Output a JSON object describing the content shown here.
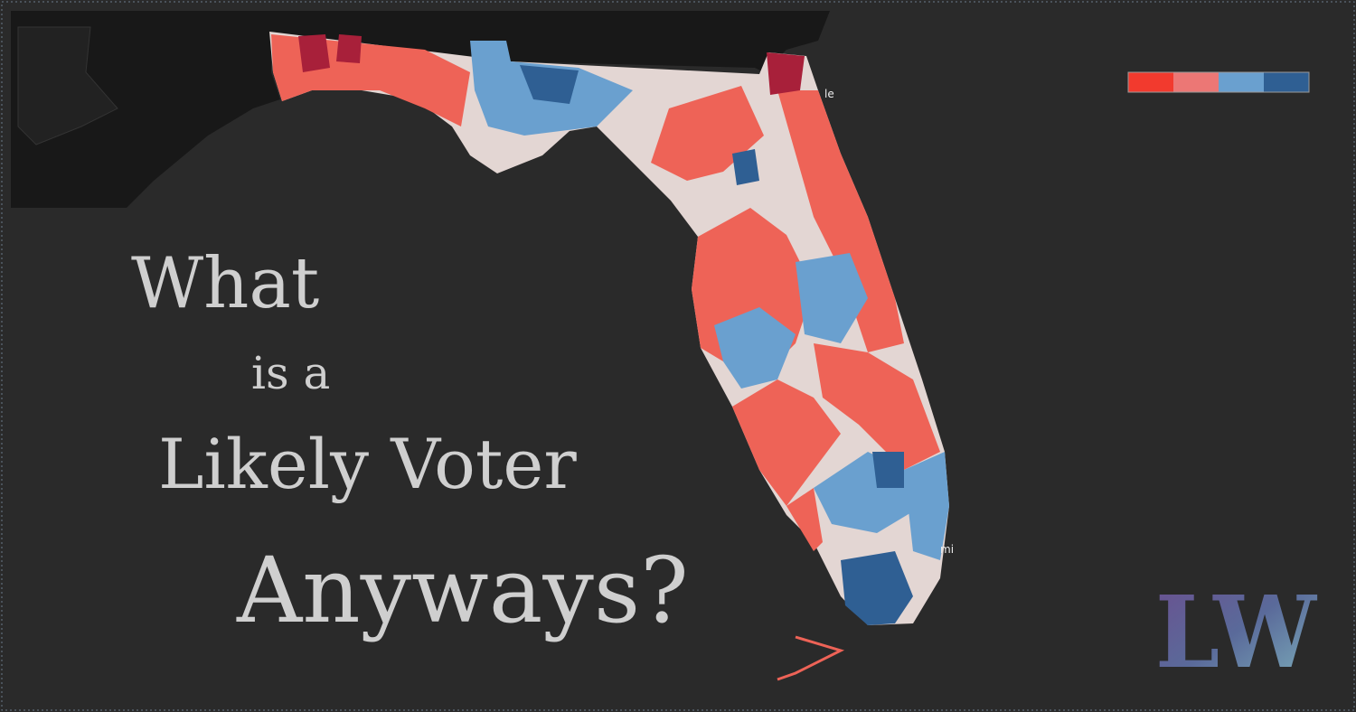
{
  "headline": {
    "lines": [
      "What",
      "is a",
      "Likely Voter",
      "Anyways?"
    ]
  },
  "map": {
    "place_labels": [
      "le",
      "mi"
    ]
  },
  "legend": {
    "colors": [
      "#f23a2e",
      "#ec7775",
      "#6aa0cf",
      "#2f5f93"
    ]
  },
  "logo": {
    "text": "LW"
  }
}
